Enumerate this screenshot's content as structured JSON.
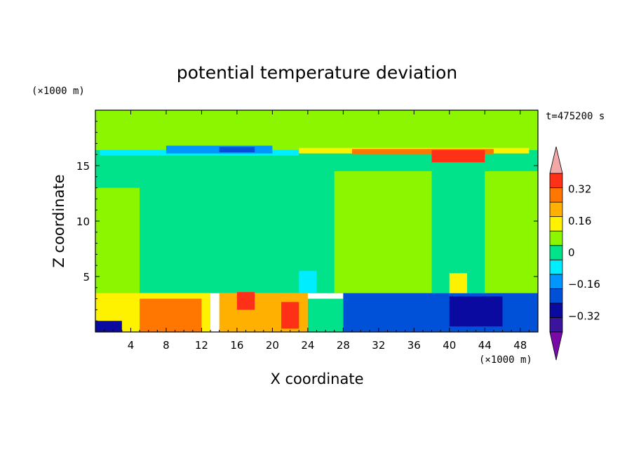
{
  "chart_data": {
    "type": "heatmap",
    "title": "potential temperature deviation",
    "xlabel": "X coordinate",
    "ylabel": "Z coordinate",
    "x_unit": "(×1000 m)",
    "y_unit": "(×1000 m)",
    "time_label": "t=475200 s",
    "xlim": [
      0,
      50
    ],
    "ylim": [
      0,
      20
    ],
    "x_ticks": [
      4,
      8,
      12,
      16,
      20,
      24,
      28,
      32,
      36,
      40,
      44,
      48
    ],
    "y_ticks": [
      5,
      10,
      15
    ],
    "colorbar": {
      "levels": [
        -0.48,
        -0.4,
        -0.32,
        -0.24,
        -0.16,
        -0.08,
        0,
        0.08,
        0.16,
        0.24,
        0.32,
        0.4
      ],
      "tick_labels": [
        "0.32",
        "0.16",
        "0",
        "−0.16",
        "−0.32"
      ],
      "tick_values": [
        0.32,
        0.16,
        0,
        -0.16,
        -0.32
      ],
      "colors": [
        "#7a0aa6",
        "#3a149c",
        "#0a0aa0",
        "#0050d8",
        "#0096ff",
        "#00ecff",
        "#00e38a",
        "#8cf500",
        "#fff200",
        "#ffb000",
        "#ff7600",
        "#ff3018",
        "#f3a8a8"
      ],
      "extend": "both"
    },
    "regions": [
      {
        "x": [
          0,
          50
        ],
        "z": [
          3.5,
          20
        ],
        "value": 0.04
      },
      {
        "x": [
          0,
          50
        ],
        "z": [
          3.5,
          16.4
        ],
        "value": -0.04
      },
      {
        "x": [
          27,
          38
        ],
        "z": [
          3.5,
          14.5
        ],
        "value": 0.04
      },
      {
        "x": [
          44,
          50
        ],
        "z": [
          3.5,
          14.5
        ],
        "value": 0.04
      },
      {
        "x": [
          0,
          5
        ],
        "z": [
          3.5,
          13
        ],
        "value": 0.04
      },
      {
        "x": [
          0.5,
          23
        ],
        "z": [
          15.9,
          16.4
        ],
        "value": -0.12
      },
      {
        "x": [
          8,
          20
        ],
        "z": [
          16.1,
          16.8
        ],
        "value": -0.2
      },
      {
        "x": [
          14,
          18
        ],
        "z": [
          16.2,
          16.7
        ],
        "value": -0.3
      },
      {
        "x": [
          23,
          49
        ],
        "z": [
          16.1,
          16.6
        ],
        "value": 0.12
      },
      {
        "x": [
          29,
          45
        ],
        "z": [
          16.0,
          16.5
        ],
        "value": 0.28
      },
      {
        "x": [
          38,
          44
        ],
        "z": [
          15.3,
          16.4
        ],
        "value": 0.36
      },
      {
        "x": [
          0,
          13
        ],
        "z": [
          0,
          3.5
        ],
        "value": 0.12
      },
      {
        "x": [
          5,
          12
        ],
        "z": [
          0,
          3.0
        ],
        "value": 0.28
      },
      {
        "x": [
          14,
          24
        ],
        "z": [
          0,
          3.5
        ],
        "value": 0.2
      },
      {
        "x": [
          16,
          18
        ],
        "z": [
          2.0,
          3.6
        ],
        "value": 0.36
      },
      {
        "x": [
          21,
          23
        ],
        "z": [
          0.3,
          2.7
        ],
        "value": 0.36
      },
      {
        "x": [
          24,
          28
        ],
        "z": [
          0,
          3.0
        ],
        "value": -0.04
      },
      {
        "x": [
          28,
          50
        ],
        "z": [
          0,
          3.5
        ],
        "value": -0.28
      },
      {
        "x": [
          40,
          46
        ],
        "z": [
          0.5,
          3.2
        ],
        "value": -0.36
      },
      {
        "x": [
          0,
          3
        ],
        "z": [
          0,
          1.0
        ],
        "value": -0.36
      },
      {
        "x": [
          23,
          25
        ],
        "z": [
          3.5,
          5.5
        ],
        "value": -0.12
      },
      {
        "x": [
          40,
          42
        ],
        "z": [
          3.5,
          5.3
        ],
        "value": 0.12
      }
    ]
  }
}
